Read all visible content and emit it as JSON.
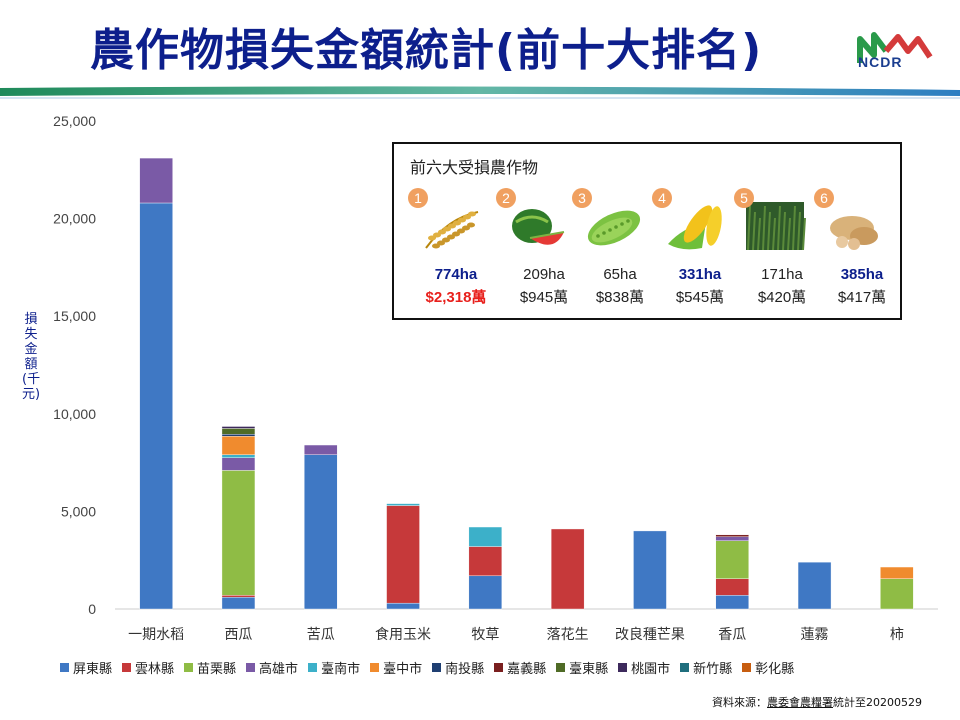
{
  "header": {
    "title": "農作物損失金額統計(前十大排名)",
    "logo_text": "NCDR"
  },
  "chart_data": {
    "type": "bar",
    "stacked": true,
    "title": "",
    "ylabel": "損失金額(千元)",
    "xlabel": "",
    "ylim": [
      0,
      25000
    ],
    "yticks": [
      0,
      5000,
      10000,
      15000,
      20000,
      25000
    ],
    "ytick_labels": [
      "0",
      "5,000",
      "10,000",
      "15,000",
      "20,000",
      "25,000"
    ],
    "grid": false,
    "legend_position": "bottom",
    "categories": [
      "一期水稻",
      "西瓜",
      "苦瓜",
      "食用玉米",
      "牧草",
      "落花生",
      "改良種芒果",
      "香瓜",
      "蓮霧",
      "柿"
    ],
    "series": [
      {
        "name": "屏東縣",
        "color": "#3f78c4",
        "values": [
          20800,
          600,
          7900,
          300,
          1700,
          0,
          4000,
          700,
          2400,
          0
        ]
      },
      {
        "name": "雲林縣",
        "color": "#c6393a",
        "values": [
          0,
          100,
          0,
          5000,
          1500,
          4100,
          0,
          850,
          0,
          0
        ]
      },
      {
        "name": "苗栗縣",
        "color": "#8fbc45",
        "values": [
          0,
          6400,
          0,
          0,
          0,
          0,
          0,
          1950,
          0,
          1550
        ]
      },
      {
        "name": "高雄市",
        "color": "#7a5aa6",
        "values": [
          2300,
          650,
          500,
          0,
          0,
          0,
          0,
          200,
          0,
          0
        ]
      },
      {
        "name": "臺南市",
        "color": "#3cb0c9",
        "values": [
          0,
          150,
          0,
          100,
          1000,
          0,
          0,
          0,
          0,
          0
        ]
      },
      {
        "name": "臺中市",
        "color": "#f08b2e",
        "values": [
          0,
          950,
          0,
          0,
          0,
          0,
          0,
          0,
          0,
          600
        ]
      },
      {
        "name": "南投縣",
        "color": "#1f3f72",
        "values": [
          0,
          100,
          0,
          0,
          0,
          0,
          0,
          0,
          0,
          0
        ]
      },
      {
        "name": "嘉義縣",
        "color": "#7a1f1f",
        "values": [
          0,
          0,
          0,
          0,
          0,
          0,
          0,
          100,
          0,
          0
        ]
      },
      {
        "name": "臺東縣",
        "color": "#4f6b26",
        "values": [
          0,
          300,
          0,
          0,
          0,
          0,
          0,
          0,
          0,
          0
        ]
      },
      {
        "name": "桃園市",
        "color": "#3d2a5c",
        "values": [
          0,
          100,
          0,
          0,
          0,
          0,
          0,
          0,
          0,
          0
        ]
      },
      {
        "name": "新竹縣",
        "color": "#1f6e7d",
        "values": [
          0,
          0,
          0,
          0,
          0,
          0,
          0,
          0,
          0,
          0
        ]
      },
      {
        "name": "彰化縣",
        "color": "#c75d10",
        "values": [
          0,
          0,
          0,
          0,
          0,
          0,
          0,
          0,
          0,
          0
        ]
      }
    ]
  },
  "inset": {
    "title": "前六大受損農作物",
    "crops": [
      {
        "rank": "1",
        "icon": "rice-icon",
        "area": "774ha",
        "money": "$2,318萬",
        "area_hl": true,
        "money_hl": true
      },
      {
        "rank": "2",
        "icon": "watermelon-icon",
        "area": "209ha",
        "money": "$945萬",
        "area_hl": false,
        "money_hl": false
      },
      {
        "rank": "3",
        "icon": "bitter-melon-icon",
        "area": "65ha",
        "money": "$838萬",
        "area_hl": false,
        "money_hl": false
      },
      {
        "rank": "4",
        "icon": "corn-icon",
        "area": "331ha",
        "money": "$545萬",
        "area_hl": true,
        "money_hl": false
      },
      {
        "rank": "5",
        "icon": "forage-grass-icon",
        "area": "171ha",
        "money": "$420萬",
        "area_hl": false,
        "money_hl": false
      },
      {
        "rank": "6",
        "icon": "peanut-icon",
        "area": "385ha",
        "money": "$417萬",
        "area_hl": true,
        "money_hl": false
      }
    ]
  },
  "source": {
    "prefix": "資料來源：",
    "org": "農委會農糧署",
    "suffix": "統計至20200529"
  }
}
